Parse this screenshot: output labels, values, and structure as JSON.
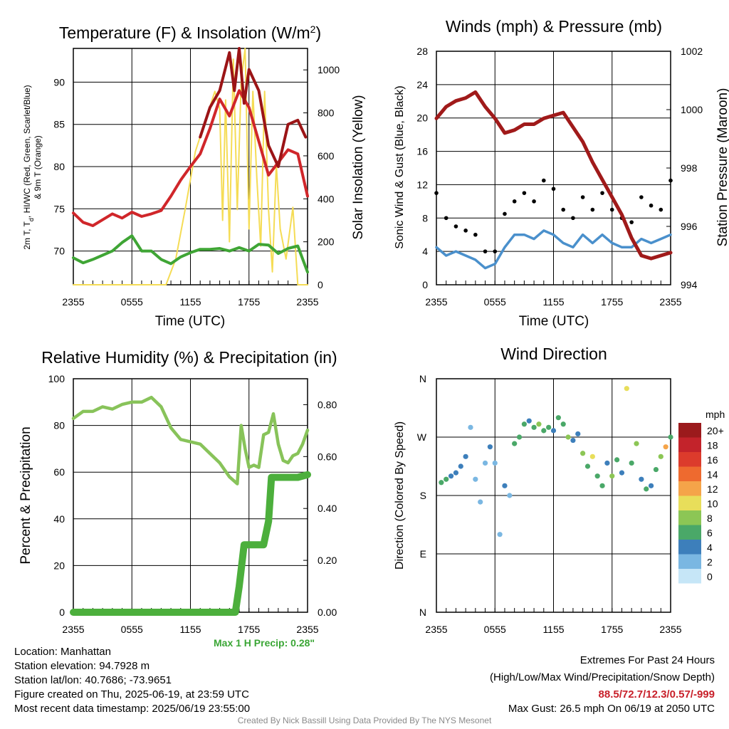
{
  "colors": {
    "t2m": "#d0262a",
    "td": "#3fa535",
    "t9m": "#9b1416",
    "solar": "#f5dc55",
    "wind": "#4a90cc",
    "gust": "#000000",
    "pressure": "#a01a1a",
    "rh": "#88c35a",
    "precip": "#4caf3c"
  },
  "panels": {
    "temp": {
      "title_main": "Temperature (F) & Insolation (W/m",
      "title_sup": "2",
      "title_end": ")",
      "ylabel_line1": "2m T, T",
      "ylabel_sub": "d",
      "ylabel_rest": ", HI/WC (Red, Green, Scarlet/Blue)",
      "ylabel_line2": "& 9m T (Orange)",
      "y2label": "Solar Insolation (Yellow)",
      "xlabel": "Time (UTC)"
    },
    "wind": {
      "title": "Winds (mph) & Pressure (mb)",
      "ylabel": "Sonic Wind & Gust (Blue, Black)",
      "y2label": "Station Pressure (Maroon)",
      "xlabel": "Time (UTC)"
    },
    "rh": {
      "title": "Relative Humidity (%) & Precipitation (in)",
      "ylabel": "Percent & Precipitation",
      "precip_note": "Max 1 H Precip: 0.28\""
    },
    "dir": {
      "title": "Wind Direction",
      "ylabel": "Direction (Colored By Speed)",
      "colorbar_unit": "mph"
    }
  },
  "footer": {
    "location": "Location: Manhattan",
    "elevation": "Station elevation: 94.7928 m",
    "latlon": "Station lat/lon: 40.7686; -73.9651",
    "created": "Figure created on Thu, 2025-06-19, at 23:59 UTC",
    "recent": "Most recent data timestamp: 2025/06/19 23:55:00",
    "extremes_title": "Extremes For Past 24 Hours",
    "extremes_desc": "(High/Low/Max Wind/Precipitation/Snow Depth)",
    "extremes_values": "88.5/72.7/12.3/0.57/-999",
    "max_gust": "Max Gust: 26.5 mph On 06/19 at 2050 UTC",
    "credit": "Created By Nick Bassill Using Data Provided By The NYS Mesonet"
  },
  "chart_data": [
    {
      "type": "line",
      "title": "Temperature (F) & Insolation (W/m2)",
      "xlabel": "Time (UTC)",
      "ylabel": "2m T, Td, HI/WC (Red, Green, Scarlet/Blue) & 9m T (Orange)",
      "y2label": "Solar Insolation (Yellow)",
      "x_ticks": [
        "2355",
        "0555",
        "1155",
        "1755",
        "2355"
      ],
      "x_hours": [
        0,
        6,
        12,
        18,
        24
      ],
      "xlim": [
        0,
        24
      ],
      "ylim": [
        66,
        94
      ],
      "y_ticks": [
        70,
        75,
        80,
        85,
        90
      ],
      "y2lim": [
        0,
        1100
      ],
      "y2_ticks": [
        0,
        200,
        400,
        600,
        800,
        1000
      ],
      "series": [
        {
          "name": "2m T",
          "axis": "left",
          "x": [
            0,
            1,
            2,
            3,
            4,
            5,
            6,
            7,
            8,
            9,
            10,
            11,
            12,
            13,
            14,
            15,
            16,
            17,
            18,
            19,
            20,
            21,
            22,
            23,
            24
          ],
          "values": [
            74.5,
            73.4,
            73.0,
            73.7,
            74.4,
            73.9,
            74.6,
            74.1,
            74.4,
            74.8,
            76.5,
            78.4,
            80.0,
            81.5,
            84.5,
            88.0,
            86.0,
            89.0,
            87.0,
            83.0,
            79.0,
            80.5,
            82.0,
            81.5,
            76.5
          ]
        },
        {
          "name": "9m T",
          "axis": "left",
          "x": [
            13,
            14,
            15,
            16,
            16.5,
            17,
            17.5,
            18,
            19,
            20,
            21,
            22,
            23,
            23.8
          ],
          "values": [
            83.5,
            87.0,
            89.0,
            93.5,
            89.0,
            94.0,
            87.5,
            91.5,
            89.0,
            82.5,
            80.0,
            85.0,
            85.5,
            83.5
          ]
        },
        {
          "name": "Td",
          "axis": "left",
          "x": [
            0,
            1,
            2,
            3,
            4,
            5,
            6,
            7,
            8,
            9,
            10,
            11,
            12,
            13,
            14,
            15,
            16,
            17,
            18,
            19,
            20,
            21,
            22,
            23,
            24
          ],
          "values": [
            69.2,
            68.6,
            69.0,
            69.5,
            70.0,
            71.0,
            71.8,
            70.0,
            70.0,
            69.0,
            68.5,
            69.3,
            69.8,
            70.2,
            70.2,
            70.3,
            70.0,
            70.4,
            70.0,
            70.8,
            70.7,
            69.7,
            70.3,
            70.6,
            67.5
          ]
        },
        {
          "name": "Solar",
          "axis": "right",
          "x": [
            0,
            9.5,
            10.5,
            11.5,
            12.5,
            13.5,
            14.5,
            15.0,
            15.3,
            15.6,
            16.0,
            16.4,
            16.8,
            17.2,
            17.6,
            18.0,
            18.4,
            18.8,
            19.2,
            19.6,
            20.0,
            20.4,
            20.8,
            21.2,
            21.8,
            22.5,
            23.0,
            24
          ],
          "values": [
            0,
            0,
            120,
            360,
            620,
            760,
            900,
            820,
            300,
            860,
            200,
            1050,
            350,
            950,
            1100,
            260,
            900,
            500,
            180,
            900,
            350,
            60,
            560,
            260,
            120,
            360,
            0,
            0
          ]
        }
      ]
    },
    {
      "type": "line",
      "title": "Winds (mph) & Pressure (mb)",
      "xlabel": "Time (UTC)",
      "ylabel": "Sonic Wind & Gust (Blue, Black)",
      "y2label": "Station Pressure (Maroon)",
      "x_ticks": [
        "2355",
        "0555",
        "1155",
        "1755",
        "2355"
      ],
      "x_hours": [
        0,
        6,
        12,
        18,
        24
      ],
      "xlim": [
        0,
        24
      ],
      "ylim": [
        0,
        28
      ],
      "y_ticks": [
        0,
        4,
        8,
        12,
        16,
        20,
        24,
        28
      ],
      "y2lim": [
        994,
        1002
      ],
      "y2_ticks": [
        994,
        996,
        998,
        1000,
        1002
      ],
      "series": [
        {
          "name": "Sonic Wind",
          "axis": "left",
          "x": [
            0,
            1,
            2,
            3,
            4,
            5,
            6,
            7,
            8,
            9,
            10,
            11,
            12,
            13,
            14,
            15,
            16,
            17,
            18,
            19,
            20,
            21,
            22,
            23,
            24
          ],
          "values": [
            4.5,
            3.5,
            4.0,
            3.5,
            3.0,
            2.0,
            2.5,
            4.5,
            6.0,
            6.0,
            5.5,
            6.5,
            6.0,
            5.0,
            4.5,
            6.0,
            5.0,
            6.0,
            5.0,
            4.5,
            4.5,
            5.5,
            5.0,
            5.5,
            6.0
          ]
        },
        {
          "name": "Gust",
          "axis": "left",
          "x": [
            0,
            1,
            2,
            3,
            4,
            5,
            6,
            7,
            8,
            9,
            10,
            11,
            12,
            13,
            14,
            15,
            16,
            17,
            18,
            19,
            20,
            21,
            22,
            23,
            24
          ],
          "values": [
            11.0,
            8.0,
            7.0,
            6.5,
            6.0,
            4.0,
            4.0,
            8.5,
            10.0,
            11.0,
            10.0,
            12.5,
            11.5,
            9.0,
            8.0,
            10.5,
            9.0,
            11.0,
            9.0,
            8.0,
            7.5,
            10.5,
            9.5,
            9.0,
            12.5
          ]
        },
        {
          "name": "Pressure",
          "axis": "right",
          "x": [
            0,
            1,
            2,
            3,
            4,
            5,
            6,
            7,
            8,
            9,
            10,
            11,
            12,
            13,
            14,
            15,
            16,
            17,
            18,
            19,
            20,
            21,
            22,
            23,
            24
          ],
          "values": [
            999.7,
            1000.1,
            1000.3,
            1000.4,
            1000.6,
            1000.1,
            999.7,
            999.2,
            999.3,
            999.5,
            999.5,
            999.7,
            999.8,
            999.9,
            999.4,
            998.9,
            998.2,
            997.6,
            997.0,
            996.4,
            995.6,
            995.0,
            994.9,
            995.0,
            995.1
          ]
        }
      ]
    },
    {
      "type": "line",
      "title": "Relative Humidity (%) & Precipitation (in)",
      "ylabel": "Percent & Precipitation",
      "x_ticks": [
        "2355",
        "0555",
        "1155",
        "1755",
        "2355"
      ],
      "x_hours": [
        0,
        6,
        12,
        18,
        24
      ],
      "xlim": [
        0,
        24
      ],
      "ylim": [
        0,
        100
      ],
      "y_ticks": [
        0,
        20,
        40,
        60,
        80,
        100
      ],
      "y2lim": [
        0,
        0.9
      ],
      "y2_ticks": [
        0.0,
        0.2,
        0.4,
        0.6,
        0.8
      ],
      "series": [
        {
          "name": "RH",
          "axis": "left",
          "x": [
            0,
            1,
            2,
            3,
            4,
            5,
            6,
            7,
            8,
            9,
            10,
            11,
            12,
            13,
            14,
            15,
            16,
            16.8,
            17.2,
            17.6,
            18.0,
            18.5,
            19,
            19.5,
            20,
            20.5,
            21,
            21.5,
            22,
            22.5,
            23,
            23.5,
            24
          ],
          "values": [
            83,
            86,
            86,
            88,
            87,
            89,
            90,
            90,
            92,
            88,
            79,
            74,
            73,
            72,
            68,
            64,
            58,
            55,
            80,
            70,
            62,
            63,
            62,
            76,
            77,
            85,
            72,
            65,
            64,
            67,
            68,
            72,
            78
          ]
        },
        {
          "name": "Precip",
          "axis": "right",
          "x": [
            0,
            16,
            16.6,
            17.0,
            17.5,
            18.0,
            19.0,
            19.5,
            20.0,
            20.3,
            20.6,
            21.0,
            22.0,
            23.0,
            24
          ],
          "values": [
            0,
            0,
            0,
            0.1,
            0.26,
            0.26,
            0.26,
            0.26,
            0.35,
            0.52,
            0.52,
            0.52,
            0.52,
            0.52,
            0.53
          ]
        }
      ]
    },
    {
      "type": "scatter",
      "title": "Wind Direction",
      "ylabel": "Direction (Colored By Speed)",
      "x_ticks": [
        "2355",
        "0555",
        "1155",
        "1755",
        "2355"
      ],
      "x_hours": [
        0,
        6,
        12,
        18,
        24
      ],
      "xlim": [
        0,
        24
      ],
      "y_ticks": [
        "N",
        "E",
        "S",
        "W",
        "N"
      ],
      "ylim": [
        0,
        360
      ],
      "colorbar": {
        "unit": "mph",
        "labels": [
          "20+",
          "18",
          "16",
          "14",
          "12",
          "10",
          "8",
          "6",
          "4",
          "2",
          "0"
        ],
        "colors": [
          "#9b1a1c",
          "#c3232b",
          "#dc3b2c",
          "#ee6a2f",
          "#f5a449",
          "#e8de5a",
          "#8cc655",
          "#4aa868",
          "#3d7fbb",
          "#7ab7e2",
          "#c6e6f7"
        ]
      },
      "points": [
        [
          0.5,
          200,
          5
        ],
        [
          1,
          205,
          6
        ],
        [
          1.5,
          210,
          4
        ],
        [
          2,
          215,
          3
        ],
        [
          2.5,
          225,
          4
        ],
        [
          3,
          240,
          3
        ],
        [
          3.5,
          285,
          1
        ],
        [
          4,
          205,
          2
        ],
        [
          4.5,
          170,
          1
        ],
        [
          5,
          230,
          2
        ],
        [
          5.5,
          255,
          3
        ],
        [
          6,
          230,
          2
        ],
        [
          6.5,
          120,
          1
        ],
        [
          7,
          195,
          4
        ],
        [
          7.5,
          180,
          2
        ],
        [
          8,
          260,
          5
        ],
        [
          8.5,
          270,
          6
        ],
        [
          9,
          290,
          6
        ],
        [
          9.5,
          295,
          4
        ],
        [
          10,
          285,
          5
        ],
        [
          10.5,
          290,
          7
        ],
        [
          11,
          280,
          6
        ],
        [
          11.5,
          285,
          5
        ],
        [
          12,
          280,
          4
        ],
        [
          12.5,
          300,
          5
        ],
        [
          13,
          290,
          6
        ],
        [
          13.5,
          270,
          7
        ],
        [
          14,
          265,
          4
        ],
        [
          14.5,
          275,
          3
        ],
        [
          15,
          245,
          8
        ],
        [
          15.5,
          225,
          6
        ],
        [
          16,
          240,
          9
        ],
        [
          16.5,
          210,
          5
        ],
        [
          17,
          195,
          6
        ],
        [
          17.5,
          230,
          4
        ],
        [
          18,
          210,
          7
        ],
        [
          18.5,
          235,
          5
        ],
        [
          19,
          215,
          3
        ],
        [
          19.5,
          345,
          10
        ],
        [
          20,
          230,
          6
        ],
        [
          20.5,
          260,
          8
        ],
        [
          21,
          205,
          4
        ],
        [
          21.5,
          190,
          6
        ],
        [
          22,
          195,
          3
        ],
        [
          22.5,
          220,
          5
        ],
        [
          23,
          240,
          7
        ],
        [
          23.5,
          255,
          11
        ],
        [
          24,
          270,
          6
        ]
      ]
    }
  ]
}
